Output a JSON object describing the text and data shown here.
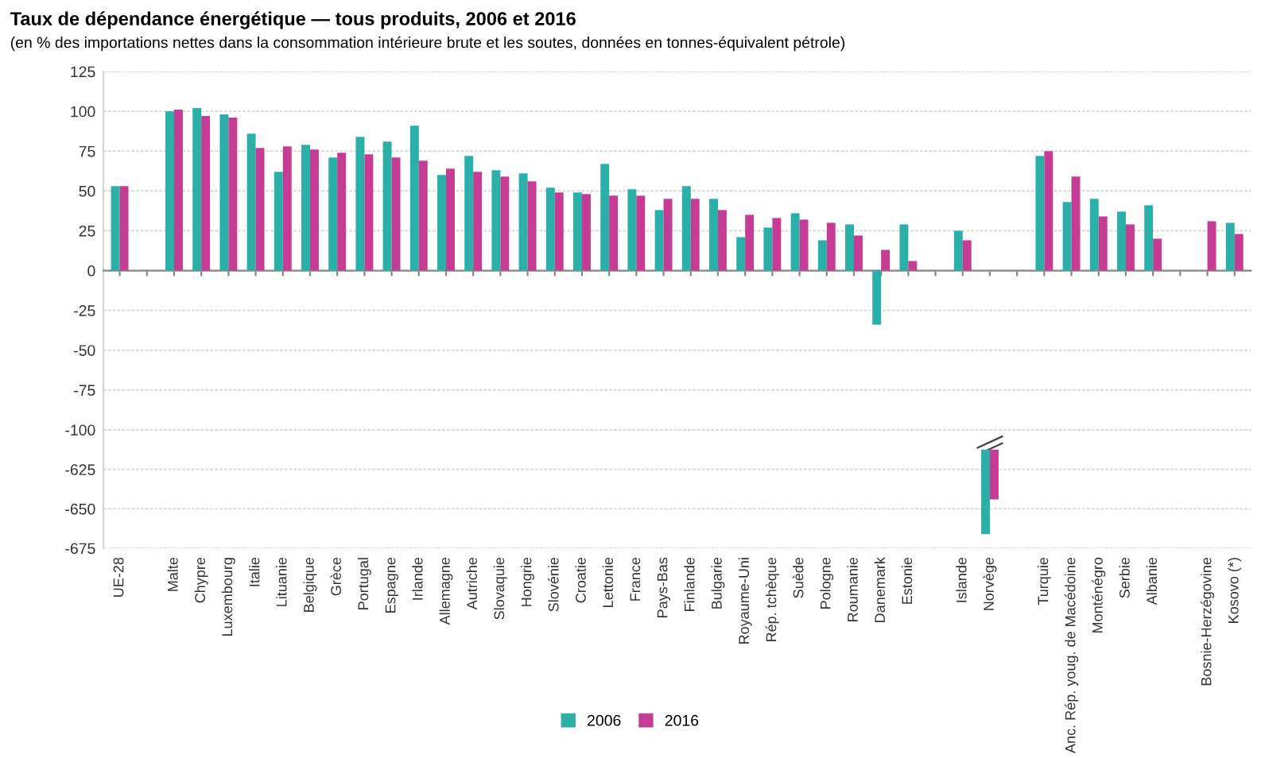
{
  "chart_data": [
    {
      "type": "bar",
      "title": "Taux de dépendance énergétique — tous produits, 2006 et 2016",
      "subtitle": "(en % des importations nettes dans la consommation intérieure brute et les soutes, données en tonnes-équivalent pétrole)",
      "categories": [
        "UE-28",
        null,
        "Malte",
        "Chypre",
        "Luxembourg",
        "Italie",
        "Lituanie",
        "Belgique",
        "Grèce",
        "Portugal",
        "Espagne",
        "Irlande",
        "Allemagne",
        "Autriche",
        "Slovaquie",
        "Hongrie",
        "Slovénie",
        "Croatie",
        "Lettonie",
        "France",
        "Pays-Bas",
        "Finlande",
        "Bulgarie",
        "Royaume-Uni",
        "Rép. tchèque",
        "Suède",
        "Pologne",
        "Roumanie",
        "Danemark",
        "Estonie",
        null,
        "Islande",
        "Norvège",
        null,
        "Turquie",
        "Anc. Rép. youg. de Macédoine",
        "Monténégro",
        "Serbie",
        "Albanie",
        null,
        "Bosnie-Herzégovine",
        "Kosovo (*)"
      ],
      "series": [
        {
          "name": "2006",
          "color": "#2ab0a8",
          "values": [
            53,
            null,
            100,
            102,
            98,
            86,
            62,
            79,
            71,
            84,
            81,
            91,
            60,
            72,
            63,
            61,
            52,
            49,
            67,
            51,
            38,
            53,
            45,
            21,
            27,
            36,
            19,
            29,
            -34,
            29,
            null,
            25,
            null,
            null,
            72,
            43,
            45,
            37,
            41,
            null,
            null,
            30
          ]
        },
        {
          "name": "2016",
          "color": "#c43c93",
          "values": [
            53,
            null,
            101,
            97,
            96,
            77,
            78,
            76,
            74,
            73,
            71,
            69,
            64,
            62,
            59,
            56,
            49,
            48,
            47,
            47,
            45,
            45,
            38,
            35,
            33,
            32,
            30,
            22,
            13,
            6,
            null,
            19,
            null,
            null,
            75,
            59,
            34,
            29,
            20,
            null,
            31,
            23
          ]
        }
      ],
      "ylim": [
        -112.5,
        125
      ],
      "yticks": [
        -100,
        -75,
        -50,
        -25,
        0,
        25,
        50,
        75,
        100,
        125
      ],
      "grid": "y",
      "legend": "bottom"
    },
    {
      "type": "bar",
      "tick_labels": "y",
      "series": [
        {
          "color": "#2ab0a8",
          "values": [
            null,
            null,
            null,
            null,
            null,
            null,
            null,
            null,
            null,
            null,
            null,
            null,
            null,
            null,
            null,
            null,
            null,
            null,
            null,
            null,
            null,
            null,
            null,
            null,
            null,
            null,
            null,
            null,
            null,
            null,
            null,
            null,
            -666,
            null,
            null,
            null,
            null,
            null,
            null,
            null,
            null,
            null
          ]
        },
        {
          "color": "#c43c93",
          "values": [
            null,
            null,
            null,
            null,
            null,
            null,
            null,
            null,
            null,
            null,
            null,
            null,
            null,
            null,
            null,
            null,
            null,
            null,
            null,
            null,
            null,
            null,
            null,
            null,
            null,
            null,
            null,
            null,
            null,
            null,
            null,
            null,
            -644,
            null,
            null,
            null,
            null,
            null,
            null,
            null,
            null,
            null
          ]
        }
      ],
      "ylim": [
        -675,
        -612.5
      ],
      "yticks": [
        -675,
        -650,
        -625
      ],
      "grid": "y"
    }
  ]
}
